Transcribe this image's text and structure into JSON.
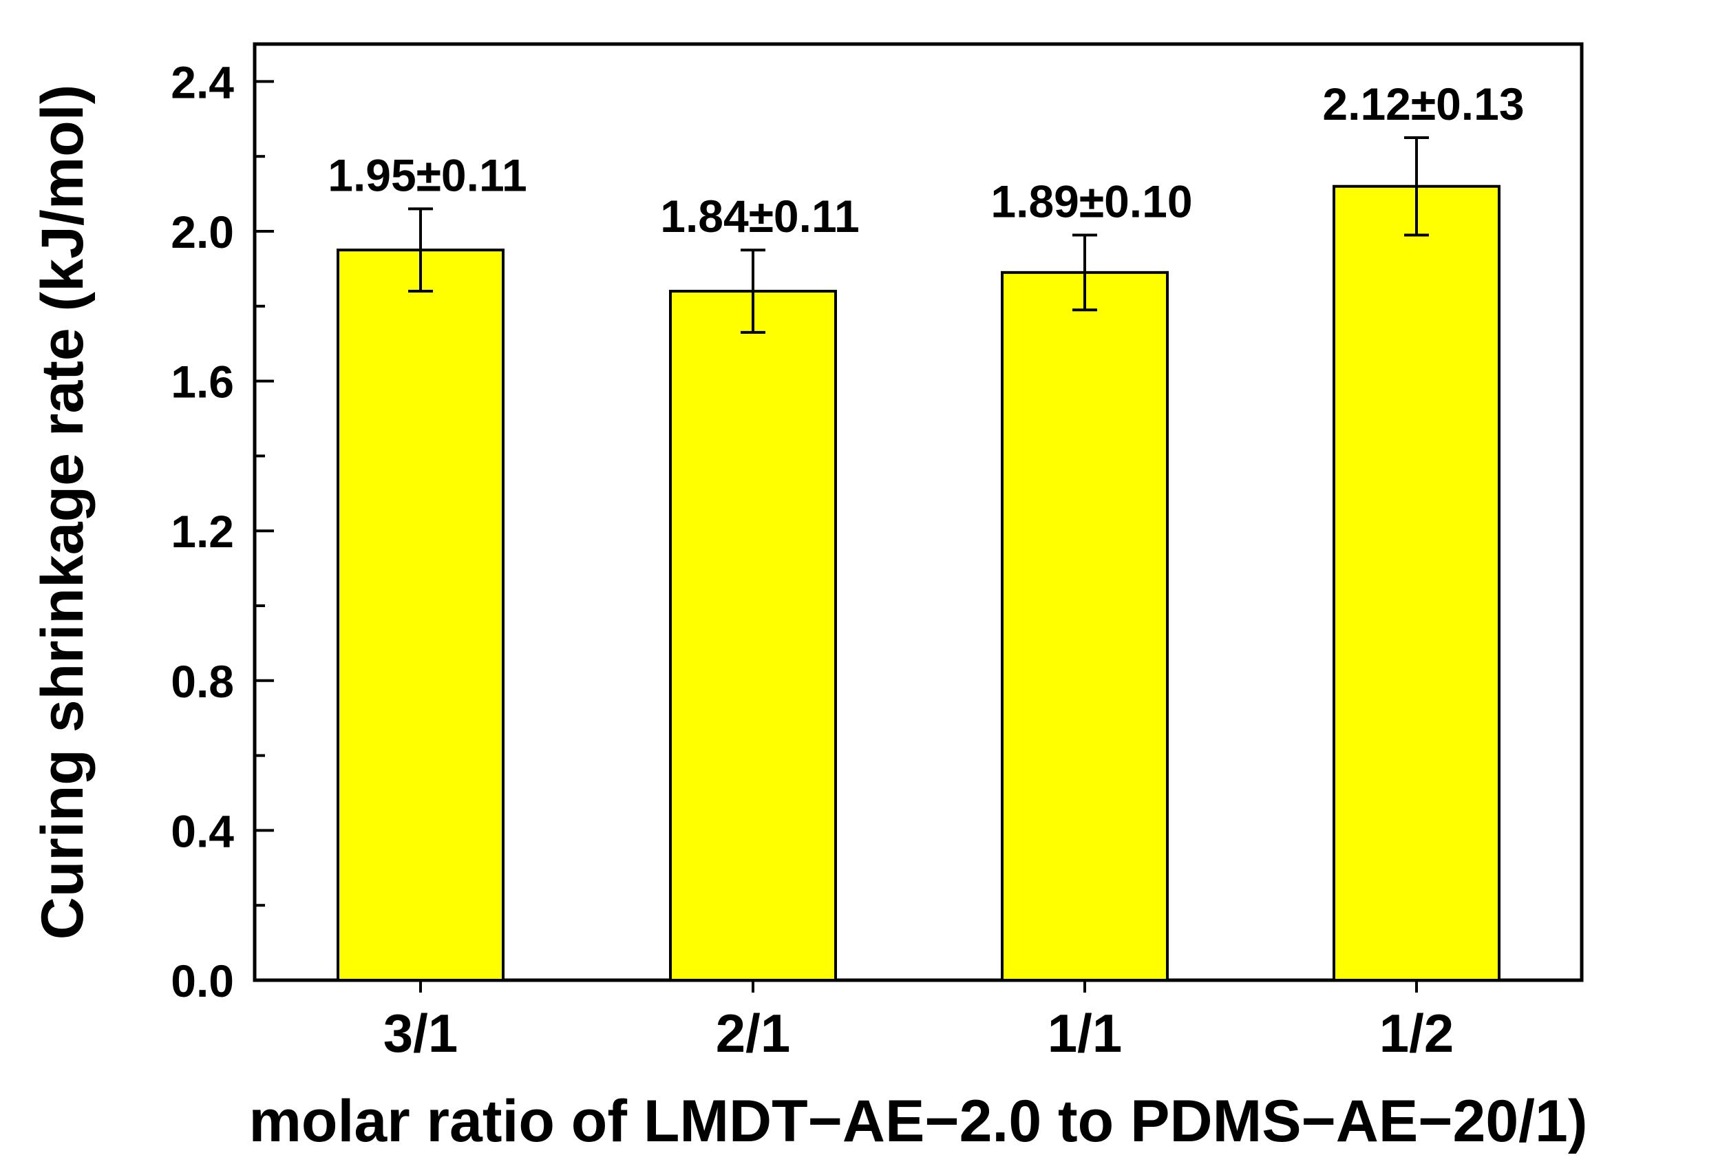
{
  "chart_data": {
    "type": "bar",
    "title": "",
    "xlabel": "molar ratio of LMDT−AE−2.0 to PDMS−AE−20/1)",
    "ylabel": "Curing shrinkage rate (kJ/mol)",
    "categories": [
      "3/1",
      "2/1",
      "1/1",
      "1/2"
    ],
    "values": [
      1.95,
      1.84,
      1.89,
      2.12
    ],
    "errors": [
      0.11,
      0.11,
      0.1,
      0.13
    ],
    "data_labels": [
      "1.95±0.11",
      "1.84±0.11",
      "1.89±0.10",
      "2.12±0.13"
    ],
    "ylim": [
      0,
      2.5
    ],
    "yticks": [
      "0.0",
      "0.4",
      "0.8",
      "1.2",
      "1.6",
      "2.0",
      "2.4"
    ],
    "grid": false,
    "legend": "none",
    "bar_color": "#ffff00",
    "edge_color": "#000000"
  }
}
